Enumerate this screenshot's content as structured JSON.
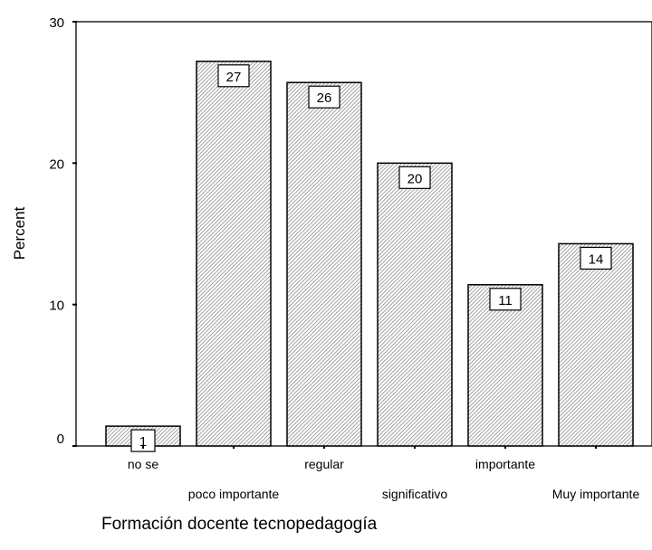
{
  "chart_data": {
    "type": "bar",
    "categories": [
      "no se",
      "poco importante",
      "regular",
      "significativo",
      "importante",
      "Muy importante"
    ],
    "values": [
      1.4,
      27.2,
      25.7,
      20.0,
      11.4,
      14.3
    ],
    "data_labels": [
      "1",
      "27",
      "26",
      "20",
      "11",
      "14"
    ],
    "title": "",
    "xlabel": "Formación docente tecnopedagogía",
    "ylabel": "Percent",
    "yticks": [
      "0",
      "10",
      "20",
      "30"
    ],
    "ylim": [
      0,
      30
    ],
    "grid": false,
    "legend": "none",
    "bar_fill": "hatched gray"
  }
}
